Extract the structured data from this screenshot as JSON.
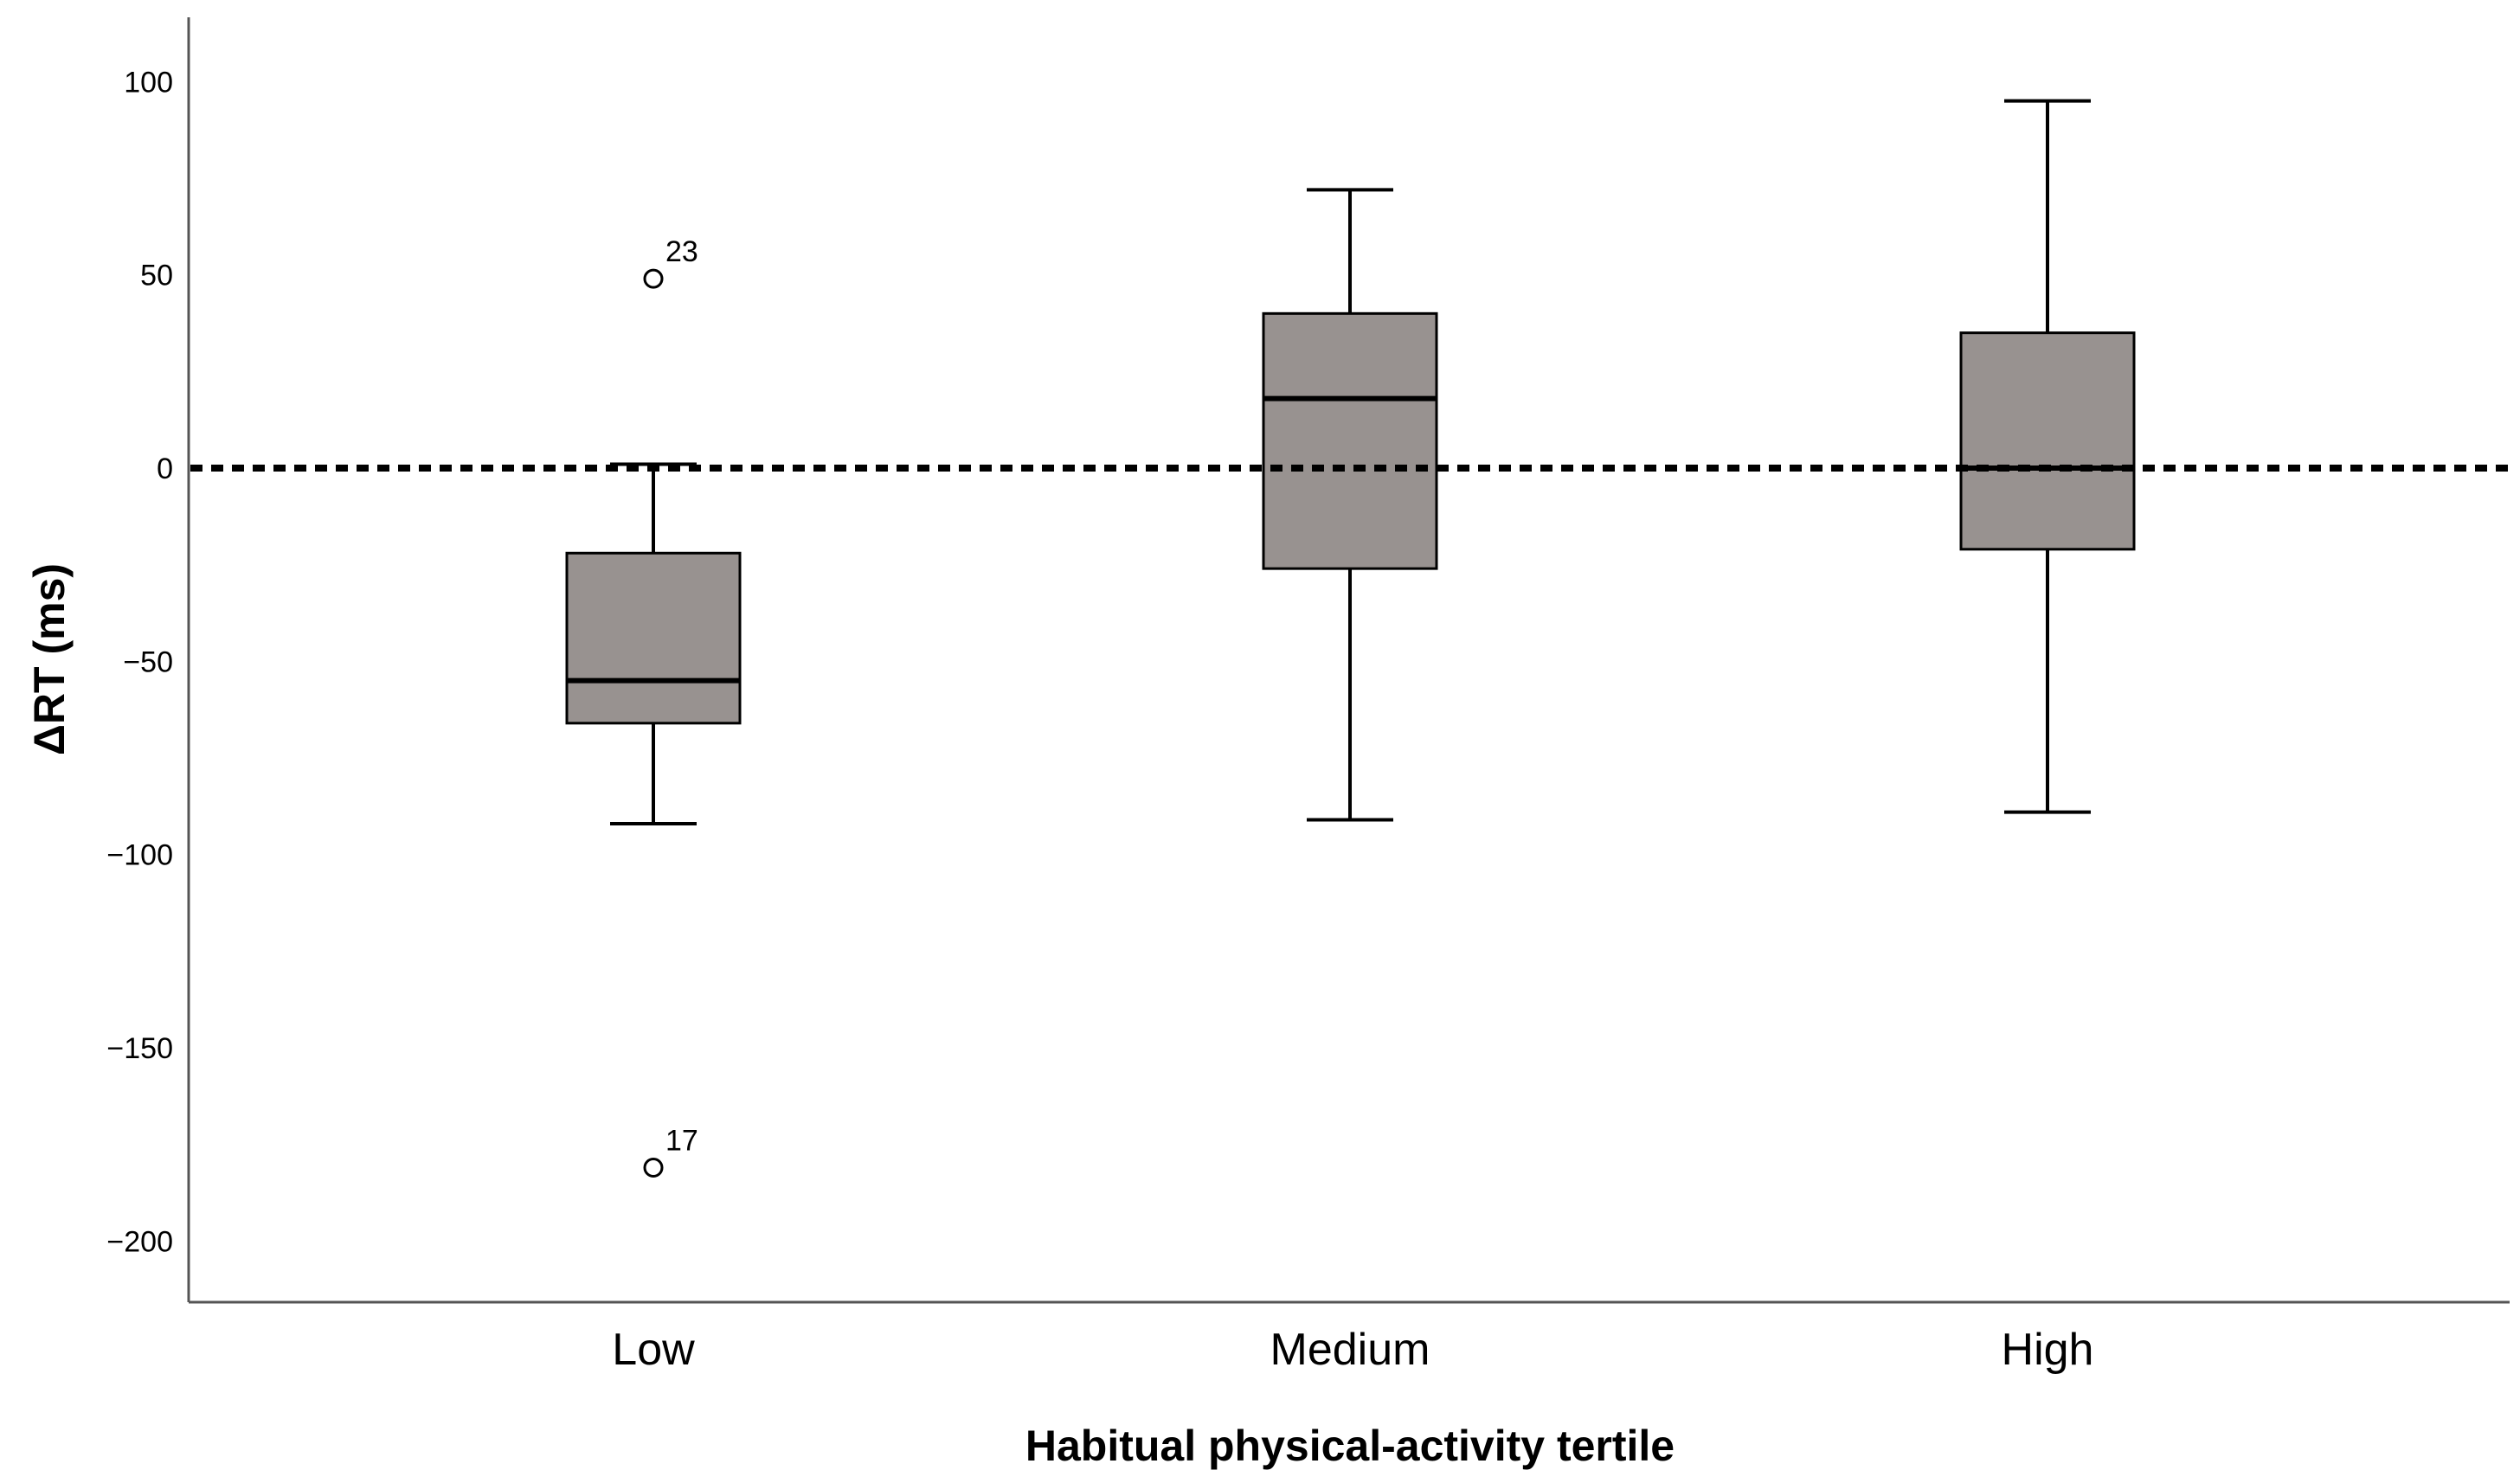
{
  "chart_data": {
    "type": "box",
    "title": "",
    "xlabel": "Habitual physical‐activity tertile",
    "ylabel": "ΔRT (ms)",
    "ylim": [
      -215,
      118
    ],
    "yticks": [
      100,
      50,
      0,
      -50,
      -100,
      -150,
      -200
    ],
    "ytick_labels": [
      "100",
      "50",
      "0",
      "−50",
      "−100",
      "−150",
      "−200"
    ],
    "reference_line": {
      "y": 0,
      "style": "dotted"
    },
    "box_color": "#989290",
    "categories": [
      "Low",
      "Medium",
      "High"
    ],
    "boxes": [
      {
        "category": "Low",
        "whisker_low": -92,
        "q1": -66,
        "median": -55,
        "q3": -22,
        "whisker_high": 1,
        "outliers": [
          {
            "value": 49,
            "label": "23"
          },
          {
            "value": -181,
            "label": "17"
          }
        ]
      },
      {
        "category": "Medium",
        "whisker_low": -91,
        "q1": -26,
        "median": 18,
        "q3": 40,
        "whisker_high": 72,
        "outliers": []
      },
      {
        "category": "High",
        "whisker_low": -89,
        "q1": -21,
        "median": 0,
        "q3": 35,
        "whisker_high": 95,
        "outliers": []
      }
    ]
  }
}
